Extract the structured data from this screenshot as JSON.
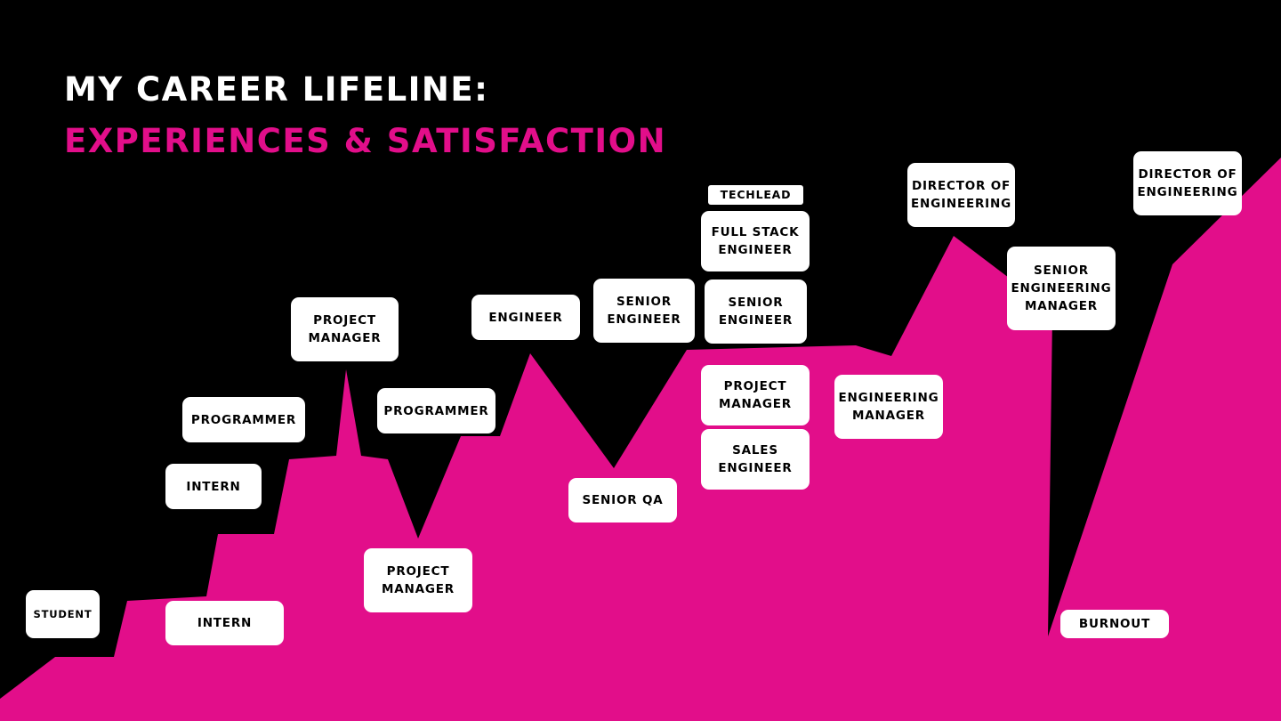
{
  "title": {
    "line1": "MY CAREER LIFELINE:",
    "line2": "EXPERIENCES & SATISFACTION"
  },
  "colors": {
    "background": "#000000",
    "accent": "#e20e8a",
    "title_line1": "#ffffff",
    "label_background": "#ffffff",
    "label_text": "#000000"
  },
  "roles": {
    "student": "STUDENT",
    "intern_low": "INTERN",
    "intern_high": "INTERN",
    "programmer_1": "PROGRAMMER",
    "project_manager_1": "PROJECT\nMANAGER",
    "programmer_2": "PROGRAMMER",
    "project_manager_2": "PROJECT\nMANAGER",
    "engineer": "ENGINEER",
    "senior_engineer_1": "SENIOR\nENGINEER",
    "senior_qa": "SENIOR QA",
    "techlead": "TECHLEAD",
    "full_stack_engineer": "FULL STACK\nENGINEER",
    "senior_engineer_2": "SENIOR\nENGINEER",
    "project_manager_3": "PROJECT\nMANAGER",
    "sales_engineer": "SALES\nENGINEER",
    "engineering_manager": "ENGINEERING\nMANAGER",
    "director_of_engineering_1": "DIRECTOR OF\nENGINEERING",
    "senior_engineering_manager": "SENIOR\nENGINEERING\nMANAGER",
    "burnout": "BURNOUT",
    "director_of_engineering_2": "DIRECTOR OF\nENGINEERING"
  }
}
